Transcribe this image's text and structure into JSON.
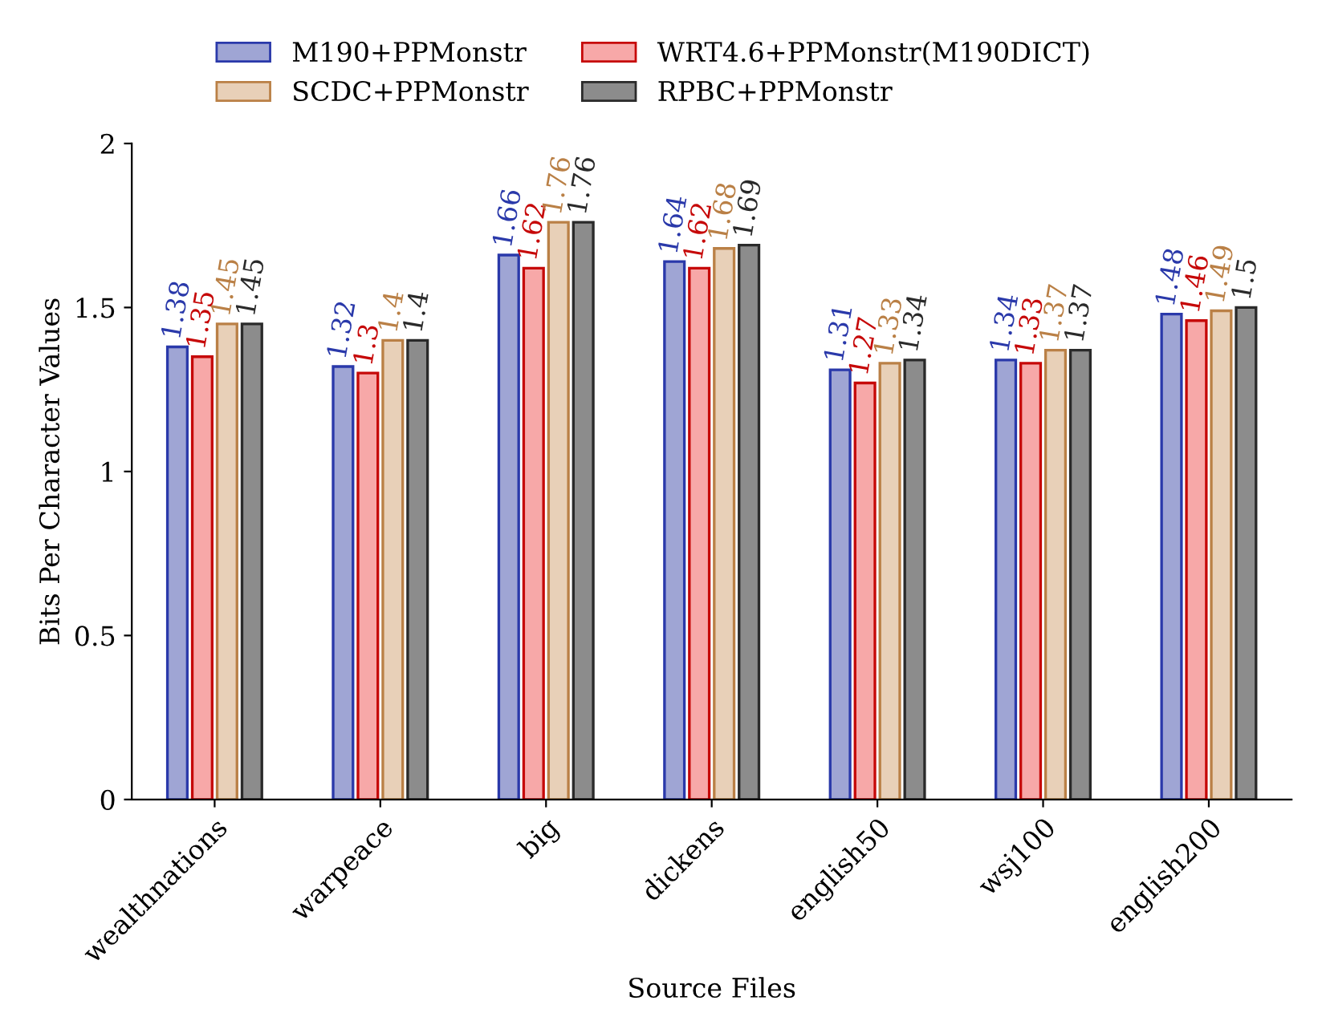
{
  "chart_data": {
    "type": "bar",
    "xlabel": "Source Files",
    "ylabel": "Bits Per Character Values",
    "categories": [
      "wealthnations",
      "warpeace",
      "big",
      "dickens",
      "english50",
      "wsj100",
      "english200"
    ],
    "series": [
      {
        "name": "M190+PPMonstr",
        "color": "#9fa5d4",
        "values": [
          1.38,
          1.32,
          1.66,
          1.64,
          1.31,
          1.34,
          1.48
        ]
      },
      {
        "name": "WRT4.6+PPMonstr(M190DICT)",
        "color": "#f7a8a8",
        "values": [
          1.35,
          1.3,
          1.62,
          1.62,
          1.27,
          1.33,
          1.46
        ]
      },
      {
        "name": "SCDC+PPMonstr",
        "color": "#e8d0b8",
        "values": [
          1.45,
          1.4,
          1.76,
          1.68,
          1.33,
          1.37,
          1.49
        ]
      },
      {
        "name": "RPBC+PPMonstr",
        "color": "#8c8c8c",
        "values": [
          1.45,
          1.4,
          1.76,
          1.69,
          1.34,
          1.37,
          1.5
        ]
      }
    ],
    "ylim": [
      0,
      2
    ],
    "yticks": [
      0,
      0.5,
      1,
      1.5,
      2
    ],
    "grid": false,
    "legend": "top",
    "data_labels": true
  }
}
